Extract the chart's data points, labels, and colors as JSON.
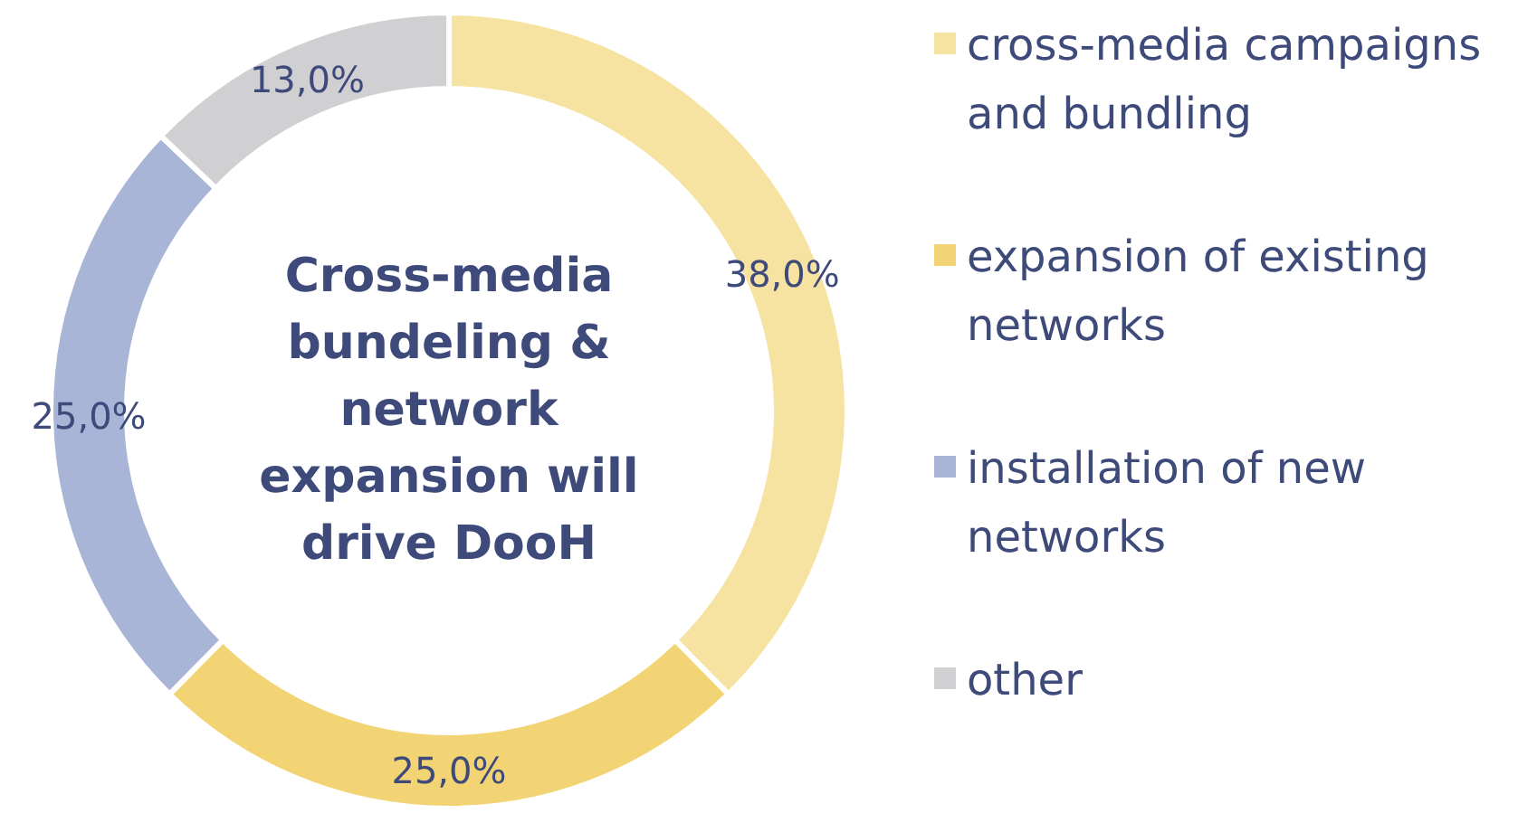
{
  "chart_data": {
    "type": "donut",
    "title": "Cross-media bundeling & network expansion will drive DooH",
    "categories": [
      "cross-media campaigns and bundling",
      "expansion of existing networks",
      "installation of new networks",
      "other"
    ],
    "values": [
      38,
      25,
      25,
      13
    ],
    "colors": [
      "#f7e3a1",
      "#f2d474",
      "#a9b5d6",
      "#d0d0d2"
    ],
    "value_labels": [
      "38,0%",
      "25,0%",
      "25,0%",
      "13,0%"
    ],
    "legend": "right"
  }
}
